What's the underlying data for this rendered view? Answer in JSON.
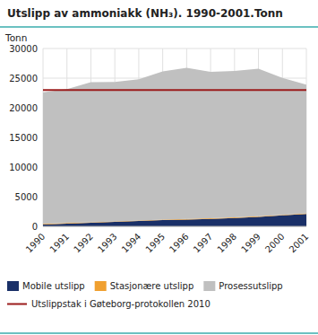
{
  "chart_data": {
    "type": "area",
    "stacked": true,
    "title": "Utslipp av ammoniakk (NH₃). 1990-2001.Tonn",
    "y_label": "Tonn",
    "x": [
      1990,
      1991,
      1992,
      1993,
      1994,
      1995,
      1996,
      1997,
      1998,
      1999,
      2000,
      2001
    ],
    "xlim": [
      1990,
      2001
    ],
    "xticks": [
      1990,
      1991,
      1992,
      1993,
      1994,
      1995,
      1996,
      1997,
      1998,
      1999,
      2000,
      2001
    ],
    "ylim": [
      0,
      30000
    ],
    "yticks": [
      0,
      5000,
      10000,
      15000,
      20000,
      25000,
      30000
    ],
    "grid": true,
    "legend": "bottom",
    "series": [
      {
        "name": "Mobile utslipp",
        "color": "#1a3068",
        "values": [
          300,
          450,
          600,
          750,
          900,
          1050,
          1150,
          1250,
          1400,
          1600,
          1850,
          2100
        ]
      },
      {
        "name": "Stasjonære utslipp",
        "color": "#f0a030",
        "values": [
          100,
          100,
          100,
          100,
          100,
          100,
          100,
          100,
          100,
          100,
          100,
          100
        ]
      },
      {
        "name": "Prosessutslipp",
        "color": "#c0c0c0",
        "values": [
          22200,
          22600,
          23600,
          23500,
          23800,
          25000,
          25500,
          24700,
          24700,
          24900,
          23100,
          21700
        ]
      }
    ],
    "reference_lines": [
      {
        "name": "Utslippstak i Gøteborg-protokollen 2010",
        "color": "#9b1c1c",
        "value": 23000
      }
    ]
  }
}
